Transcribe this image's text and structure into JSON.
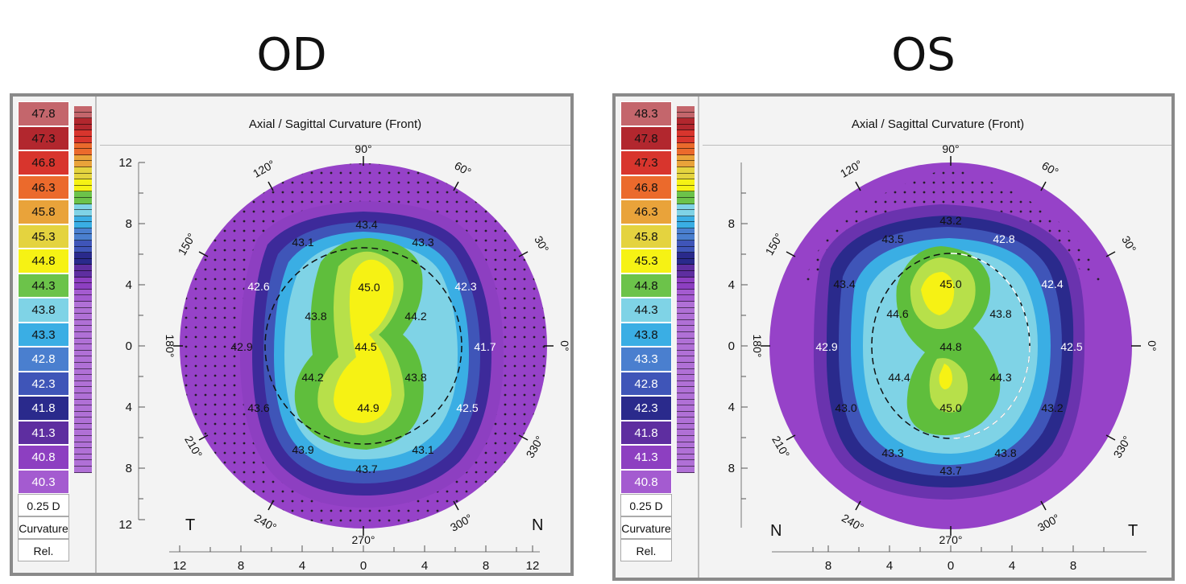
{
  "colors": {
    "accent_yellow": "#f6f214",
    "accent_green": "#5fbe3c",
    "accent_purple": "#9642c8"
  },
  "od": {
    "title": "OD",
    "map_title": "Axial / Sagittal Curvature (Front)",
    "legend": [
      "47.8",
      "47.3",
      "46.8",
      "46.3",
      "45.8",
      "45.3",
      "44.8",
      "44.3",
      "43.8",
      "43.3",
      "42.8",
      "42.3",
      "41.8",
      "41.3",
      "40.8",
      "40.3"
    ],
    "info": [
      "0.25 D",
      "Curvature",
      "Rel."
    ],
    "y_ticks": [
      "12",
      "8",
      "4",
      "0",
      "4",
      "8",
      "12"
    ],
    "x_ticks": [
      "12",
      "8",
      "4",
      "0",
      "4",
      "8",
      "12"
    ],
    "left_label": "T",
    "right_label": "N",
    "angles": {
      "a90": "90°",
      "a60": "60°",
      "a30": "30°",
      "a0": "0°",
      "a330": "330°",
      "a300": "300°",
      "a270": "270°",
      "a240": "240°",
      "a210": "210°",
      "a180": "180°",
      "a150": "150°",
      "a120": "120°"
    },
    "values": {
      "v1": "43.4",
      "v2": "43.1",
      "v3": "43.3",
      "v4": "45.0",
      "v5": "42.6",
      "v6": "42.3",
      "v7": "43.8",
      "v8": "44.2",
      "v9": "42.9",
      "v10": "44.5",
      "v11": "41.7",
      "v12": "44.2",
      "v13": "43.8",
      "v14": "43.6",
      "v15": "44.9",
      "v16": "42.5",
      "v17": "43.9",
      "v18": "43.1",
      "v19": "43.7"
    }
  },
  "os": {
    "title": "OS",
    "map_title": "Axial / Sagittal Curvature (Front)",
    "legend": [
      "48.3",
      "47.8",
      "47.3",
      "46.8",
      "46.3",
      "45.8",
      "45.3",
      "44.8",
      "44.3",
      "43.8",
      "43.3",
      "42.8",
      "42.3",
      "41.8",
      "41.3",
      "40.8"
    ],
    "info": [
      "0.25 D",
      "Curvature",
      "Rel."
    ],
    "y_ticks": [
      "8",
      "4",
      "0",
      "4",
      "8"
    ],
    "x_ticks": [
      "8",
      "4",
      "0",
      "4",
      "8"
    ],
    "left_label": "N",
    "right_label": "T",
    "angles": {
      "a90": "90°",
      "a60": "60°",
      "a30": "30°",
      "a0": "0°",
      "a330": "330°",
      "a300": "300°",
      "a270": "270°",
      "a240": "240°",
      "a210": "210°",
      "a180": "180°",
      "a150": "150°",
      "a120": "120°"
    },
    "values": {
      "v1": "43.2",
      "v2": "43.5",
      "v3": "42.8",
      "v4": "45.0",
      "v5": "43.4",
      "v6": "42.4",
      "v7": "44.6",
      "v8": "43.8",
      "v9": "42.9",
      "v10": "44.8",
      "v11": "42.5",
      "v12": "44.4",
      "v13": "44.3",
      "v14": "43.0",
      "v15": "45.0",
      "v16": "43.2",
      "v17": "43.3",
      "v18": "43.8",
      "v19": "43.7"
    }
  }
}
